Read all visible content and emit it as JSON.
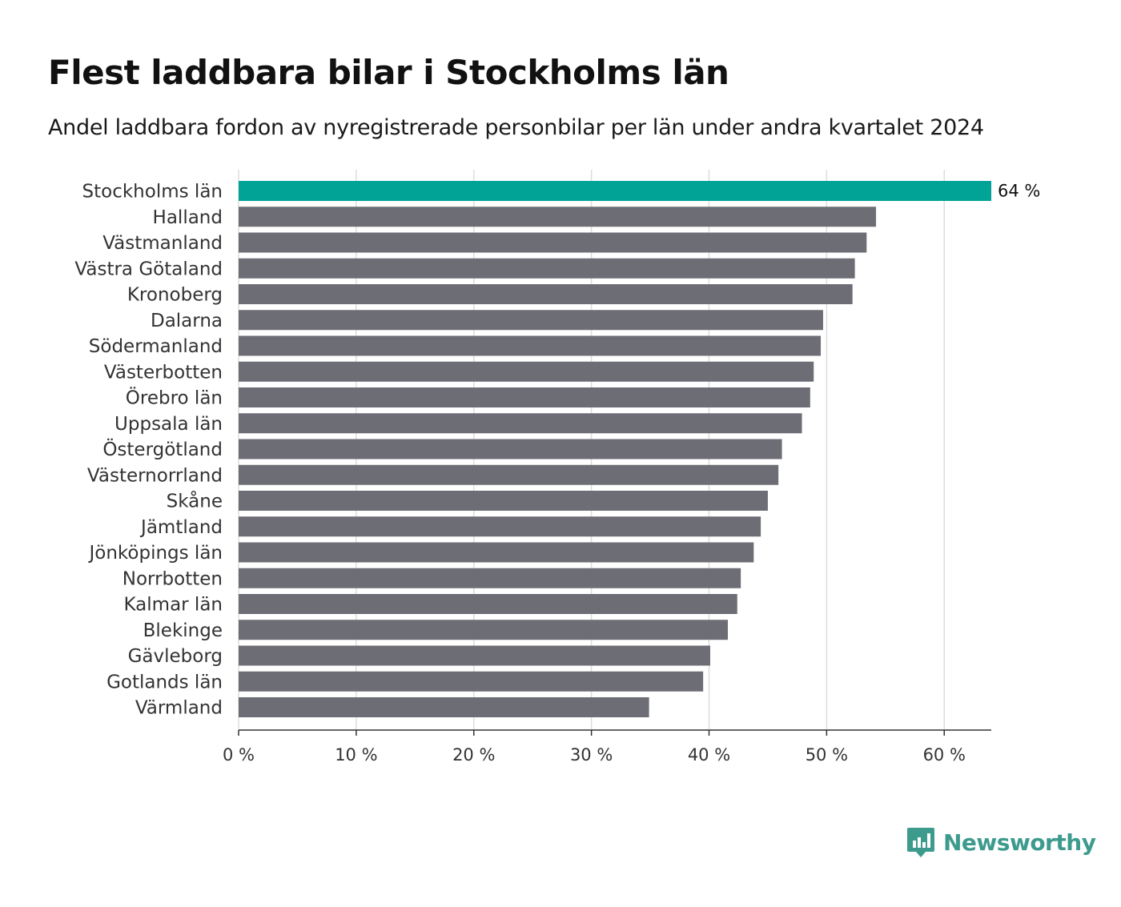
{
  "title": "Flest laddbara bilar i Stockholms län",
  "subtitle": "Andel laddbara fordon av nyregistrerade personbilar per län under andra kvartalet 2024",
  "brand": "Newsworthy",
  "colors": {
    "highlight": "#00a396",
    "bar": "#6d6d75",
    "grid": "#dddddd",
    "axis": "#333333",
    "brand": "#3d9b8e"
  },
  "chart_data": {
    "type": "bar",
    "orientation": "horizontal",
    "title": "Flest laddbara bilar i Stockholms län",
    "subtitle": "Andel laddbara fordon av nyregistrerade personbilar per län under andra kvartalet 2024",
    "xlabel": "",
    "ylabel": "",
    "xlim": [
      0,
      64
    ],
    "ticks": [
      0,
      10,
      20,
      30,
      40,
      50,
      60
    ],
    "tick_labels": [
      "0 %",
      "10 %",
      "20 %",
      "30 %",
      "40 %",
      "50 %",
      "60 %"
    ],
    "grid": true,
    "categories": [
      "Stockholms län",
      "Halland",
      "Västmanland",
      "Västra Götaland",
      "Kronoberg",
      "Dalarna",
      "Södermanland",
      "Västerbotten",
      "Örebro län",
      "Uppsala län",
      "Östergötland",
      "Västernorrland",
      "Skåne",
      "Jämtland",
      "Jönköpings län",
      "Norrbotten",
      "Kalmar län",
      "Blekinge",
      "Gävleborg",
      "Gotlands län",
      "Värmland"
    ],
    "values": [
      64.0,
      54.2,
      53.4,
      52.4,
      52.2,
      49.7,
      49.5,
      48.9,
      48.6,
      47.9,
      46.2,
      45.9,
      45.0,
      44.4,
      43.8,
      42.7,
      42.4,
      41.6,
      40.1,
      39.5,
      34.9
    ],
    "highlight_index": 0,
    "data_labels": [
      {
        "index": 0,
        "text": "64 %"
      }
    ]
  }
}
